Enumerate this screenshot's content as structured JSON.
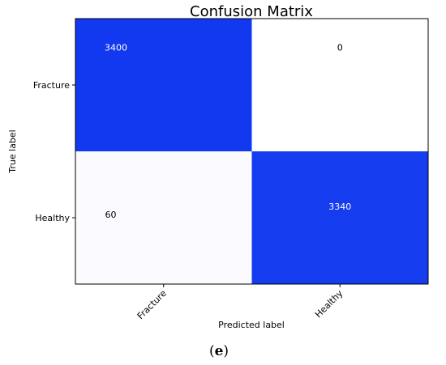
{
  "chart_data": {
    "type": "heatmap",
    "title": "Confusion Matrix",
    "xlabel": "Predicted label",
    "ylabel": "True label",
    "x_categories": [
      "Fracture",
      "Healthy"
    ],
    "y_categories": [
      "Fracture",
      "Healthy"
    ],
    "matrix": [
      [
        3400,
        0
      ],
      [
        60,
        3340
      ]
    ],
    "colormap": {
      "low": "#ffffff",
      "high": "#1238f0"
    },
    "grid": false,
    "legend": "none"
  },
  "caption": {
    "open": "(",
    "letter": "e",
    "close": ")"
  }
}
